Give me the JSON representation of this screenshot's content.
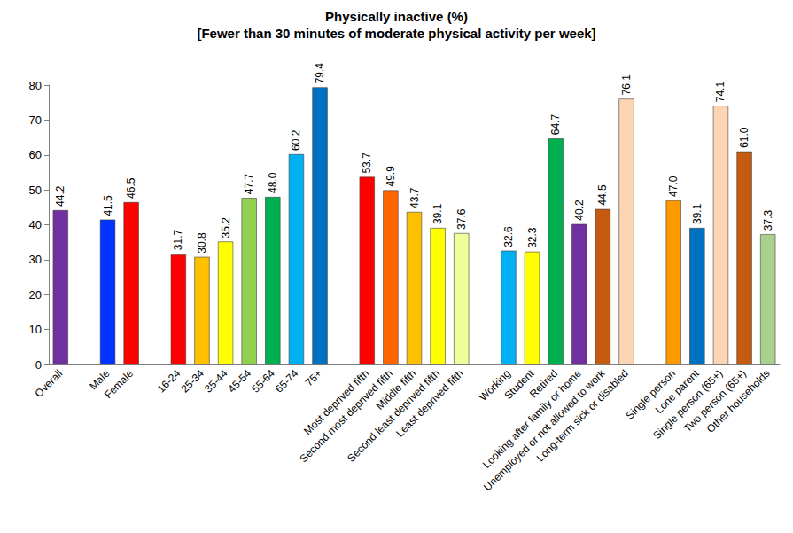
{
  "chart_data": {
    "type": "bar",
    "title": "Physically inactive (%)",
    "subtitle": "[Fewer than 30 minutes of moderate physical activity per week]",
    "categories": [
      "Overall",
      null,
      "Male",
      "Female",
      null,
      "16-24",
      "25-34",
      "35-44",
      "45-54",
      "55-64",
      "65-74",
      "75+",
      null,
      "Most deprived fifth",
      "Second most deprived fifth",
      "Middle fifth",
      "Second least deprived fifth",
      "Least deprived fifth",
      null,
      "Working",
      "Student",
      "Retired",
      "Looking after family or home",
      "Unemployed or not allowed to work",
      "Long-term sick or disabled",
      null,
      "Single person",
      "Lone parent",
      "Single person (65+)",
      "Two person (65+)",
      "Other households"
    ],
    "values": [
      44.2,
      null,
      41.5,
      46.5,
      null,
      31.7,
      30.8,
      35.2,
      47.7,
      48.0,
      60.2,
      79.4,
      null,
      53.7,
      49.9,
      43.7,
      39.1,
      37.6,
      null,
      32.6,
      32.3,
      64.7,
      40.2,
      44.5,
      76.1,
      null,
      47.0,
      39.1,
      74.1,
      61.0,
      37.3
    ],
    "value_labels": [
      "44.2",
      null,
      "41.5",
      "46.5",
      null,
      "31.7",
      "30.8",
      "35.2",
      "47.7",
      "48.0",
      "60.2",
      "79.4",
      null,
      "53.7",
      "49.9",
      "43.7",
      "39.1",
      "37.6",
      null,
      "32.6",
      "32.3",
      "64.7",
      "40.2",
      "44.5",
      "76.1",
      null,
      "47.0",
      "39.1",
      "74.1",
      "61.0",
      "37.3"
    ],
    "colors": [
      "#7030A0",
      null,
      "#0033FF",
      "#FF0000",
      null,
      "#FF0000",
      "#FFC000",
      "#FFFF00",
      "#92D050",
      "#00B050",
      "#00B0F0",
      "#0070C0",
      null,
      "#FF0000",
      "#FF6600",
      "#FFC000",
      "#FFFF00",
      "#EEFF99",
      null,
      "#00B0F0",
      "#FFFF00",
      "#00B050",
      "#7030A0",
      "#C55A11",
      "#FCD5B5",
      null,
      "#FF9900",
      "#0070C0",
      "#FCD5B5",
      "#C55A11",
      "#A9D18E"
    ],
    "ylim": [
      0,
      80
    ],
    "yticks": [
      0,
      10,
      20,
      30,
      40,
      50,
      60,
      70,
      80
    ],
    "grid": false,
    "data_labels": true
  }
}
